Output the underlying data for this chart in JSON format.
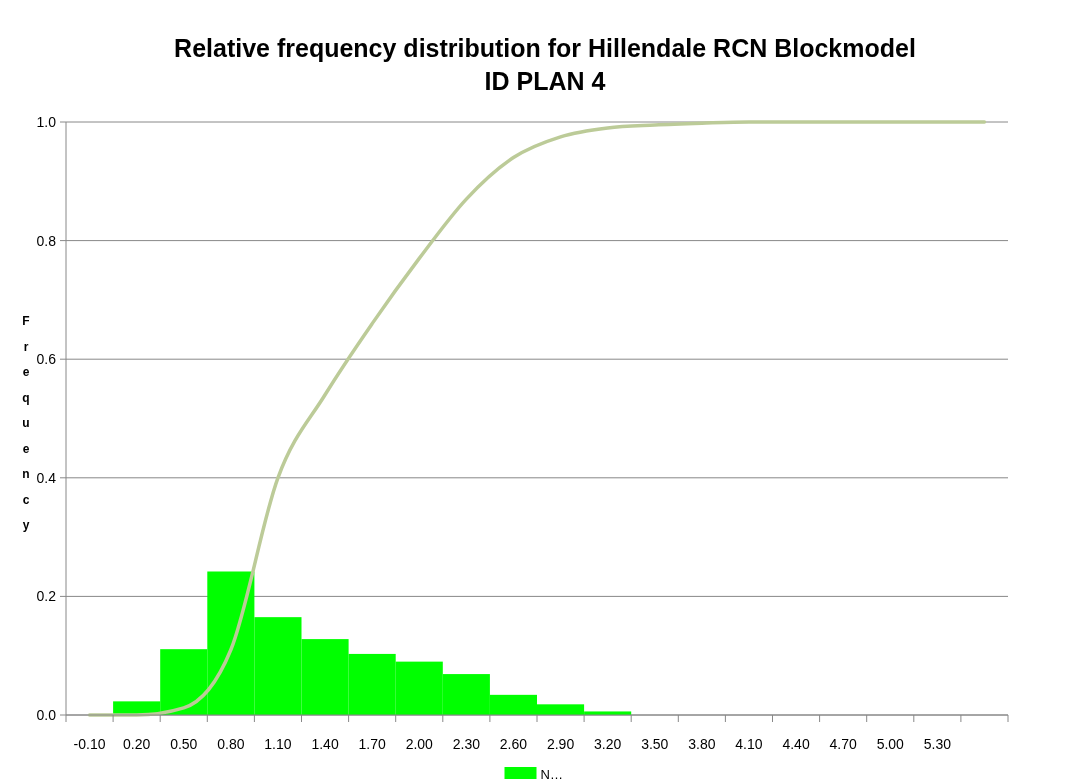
{
  "chart_data": {
    "type": "bar",
    "title": "Relative frequency distribution for Hillendale RCN Blockmodel\nID PLAN 4",
    "ylabel": "Frequency",
    "categories": [
      "-0.10",
      "0.20",
      "0.50",
      "0.80",
      "1.10",
      "1.40",
      "1.70",
      "2.00",
      "2.30",
      "2.60",
      "2.90",
      "3.20",
      "3.50",
      "3.80",
      "4.10",
      "4.40",
      "4.70",
      "5.00",
      "5.30",
      null
    ],
    "series": [
      {
        "name": "N…",
        "color": "#00ff00",
        "values": [
          0,
          0.023,
          0.111,
          0.242,
          0.165,
          0.128,
          0.103,
          0.09,
          0.069,
          0.034,
          0.018,
          0.006,
          0,
          0,
          0,
          0,
          0,
          0,
          0,
          0
        ]
      },
      {
        "type": "line",
        "color": "#bccb98",
        "values": [
          0,
          0,
          0.012,
          0.11,
          0.4,
          0.54,
          0.66,
          0.77,
          0.87,
          0.94,
          0.975,
          0.99,
          0.995,
          0.998,
          1,
          1,
          1,
          1,
          1,
          1
        ]
      }
    ],
    "ylim": [
      0,
      1
    ],
    "yticks": [
      {
        "value": 0,
        "label": "0.0"
      },
      {
        "value": 0.2,
        "label": "0.2"
      },
      {
        "value": 0.4,
        "label": "0.4"
      },
      {
        "value": 0.6,
        "label": "0.6"
      },
      {
        "value": 0.8,
        "label": "0.8"
      },
      {
        "value": 1,
        "label": "1.0"
      }
    ],
    "grid": "y",
    "legend": "bottom",
    "marker": "none",
    "line_style": "solid"
  }
}
